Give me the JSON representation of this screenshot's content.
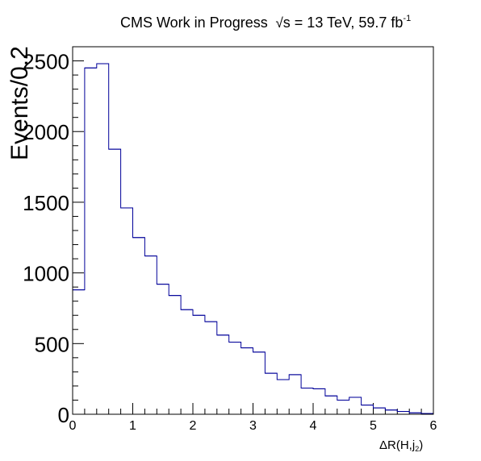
{
  "header": {
    "experiment": "CMS Work in Progress",
    "energy_text": "s = 13 TeV, 59.7 fb",
    "lumi_exponent": "-1"
  },
  "chart_data": {
    "type": "histogram",
    "xlabel_main": "ΔR(H,j",
    "xlabel_sub": "2",
    "xlabel_close": ")",
    "ylabel": "Events/0.2",
    "xlim": [
      0,
      6
    ],
    "ylim": [
      0,
      2600
    ],
    "bin_width": 0.2,
    "x_ticks": [
      "0",
      "1",
      "2",
      "3",
      "4",
      "5",
      "6"
    ],
    "y_ticks": [
      "0",
      "500",
      "1000",
      "1500",
      "2000",
      "2500"
    ],
    "line_color": "#000099",
    "bins": [
      {
        "x": 0.0,
        "value": 880
      },
      {
        "x": 0.2,
        "value": 2450
      },
      {
        "x": 0.4,
        "value": 2480
      },
      {
        "x": 0.6,
        "value": 1875
      },
      {
        "x": 0.8,
        "value": 1460
      },
      {
        "x": 1.0,
        "value": 1250
      },
      {
        "x": 1.2,
        "value": 1120
      },
      {
        "x": 1.4,
        "value": 920
      },
      {
        "x": 1.6,
        "value": 840
      },
      {
        "x": 1.8,
        "value": 740
      },
      {
        "x": 2.0,
        "value": 700
      },
      {
        "x": 2.2,
        "value": 655
      },
      {
        "x": 2.4,
        "value": 560
      },
      {
        "x": 2.6,
        "value": 510
      },
      {
        "x": 2.8,
        "value": 470
      },
      {
        "x": 3.0,
        "value": 440
      },
      {
        "x": 3.2,
        "value": 290
      },
      {
        "x": 3.4,
        "value": 245
      },
      {
        "x": 3.6,
        "value": 280
      },
      {
        "x": 3.8,
        "value": 185
      },
      {
        "x": 4.0,
        "value": 180
      },
      {
        "x": 4.2,
        "value": 130
      },
      {
        "x": 4.4,
        "value": 100
      },
      {
        "x": 4.6,
        "value": 120
      },
      {
        "x": 4.8,
        "value": 65
      },
      {
        "x": 5.0,
        "value": 45
      },
      {
        "x": 5.2,
        "value": 30
      },
      {
        "x": 5.4,
        "value": 20
      },
      {
        "x": 5.6,
        "value": 10
      },
      {
        "x": 5.8,
        "value": 5
      }
    ]
  }
}
